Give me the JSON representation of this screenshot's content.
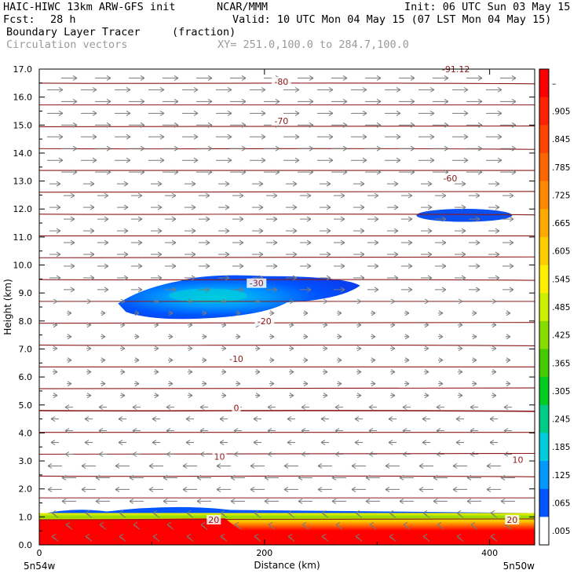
{
  "header": {
    "model": "HAIC-HIWC 13km ARW-GFS init",
    "org": "NCAR/MMM",
    "init": "Init: 06 UTC Sun 03 May 15",
    "fcst_label": "Fcst:",
    "fcst_value": "28 h",
    "valid": "Valid: 10 UTC Mon 04 May 15 (07 LST Mon 04 May 15)",
    "field": "Boundary Layer Tracer",
    "units": "(fraction)",
    "overlay": "Circulation vectors",
    "xy_range": "XY= 251.0,100.0 to 284.7,100.0"
  },
  "chart_data": {
    "type": "heatmap",
    "xlabel": "Distance (km)",
    "ylabel": "Height (km)",
    "xlim": [
      0,
      440
    ],
    "ylim": [
      0,
      17
    ],
    "x_ticks": [
      "0",
      "200",
      "400"
    ],
    "y_ticks": [
      "0.0",
      "1.0",
      "2.0",
      "3.0",
      "4.0",
      "5.0",
      "6.0",
      "7.0",
      "8.0",
      "9.0",
      "10.0",
      "11.0",
      "12.0",
      "13.0",
      "14.0",
      "15.0",
      "16.0",
      "17.0"
    ],
    "x_end_labels": {
      "left": "5n54w",
      "right": "5n50w"
    },
    "colorbar": {
      "labels": [
        "–",
        ".905",
        ".845",
        ".785",
        ".725",
        ".665",
        ".605",
        ".545",
        ".485",
        ".425",
        ".365",
        ".305",
        ".245",
        ".185",
        ".125",
        ".065",
        ".005"
      ],
      "colors": [
        "#ff0000",
        "#ff2200",
        "#ff4400",
        "#ff6600",
        "#ff8800",
        "#ffaa00",
        "#ffcc00",
        "#ffee00",
        "#ccee00",
        "#88dd00",
        "#44cc00",
        "#00cc22",
        "#00cc88",
        "#00ccdd",
        "#0099ff",
        "#0055ff",
        "#ffffff"
      ]
    },
    "temperature_contours": {
      "units": "C",
      "color": "#8b1a1a",
      "labels": [
        {
          "text": "-80",
          "x": 215,
          "y": 16.55
        },
        {
          "text": "-70",
          "x": 215,
          "y": 15.15
        },
        {
          "text": "-60",
          "x": 365,
          "y": 13.1
        },
        {
          "text": "-30",
          "x": 193,
          "y": 9.35
        },
        {
          "text": "-20",
          "x": 200,
          "y": 8.0
        },
        {
          "text": "-10",
          "x": 175,
          "y": 6.65
        },
        {
          "text": "0",
          "x": 175,
          "y": 4.9
        },
        {
          "text": "10",
          "x": 160,
          "y": 3.15
        },
        {
          "text": "10",
          "x": 425,
          "y": 3.05
        },
        {
          "text": "20",
          "x": 155,
          "y": 0.9
        },
        {
          "text": "20",
          "x": 420,
          "y": 0.9
        },
        {
          "text": "-91.12",
          "x": 370,
          "y": 17.0
        }
      ]
    },
    "tracer_features": [
      {
        "name": "boundary layer",
        "x_range": [
          0,
          440
        ],
        "z_range": [
          0,
          1.25
        ],
        "peak": 1.0
      },
      {
        "name": "elevated layer",
        "x_range": [
          70,
          285
        ],
        "z_range": [
          8.1,
          9.6
        ],
        "peak": 0.3
      },
      {
        "name": "upper layer",
        "x_range": [
          335,
          420
        ],
        "z_range": [
          11.6,
          11.95
        ],
        "peak": 0.07
      }
    ],
    "wind_vectors": [
      {
        "z_range": [
          5.0,
          17.0
        ],
        "direction": "westerly"
      },
      {
        "z_range": [
          0.0,
          5.0
        ],
        "direction": "easterly"
      }
    ],
    "grid": false
  }
}
